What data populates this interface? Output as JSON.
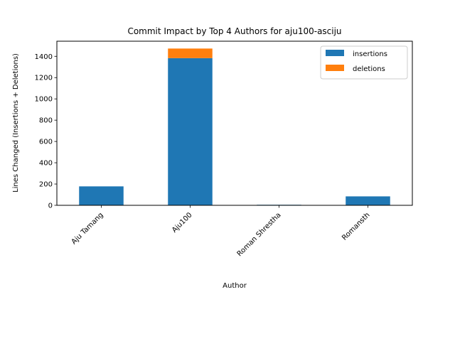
{
  "chart_data": {
    "type": "bar",
    "stacked": true,
    "title": "Commit Impact by Top 4 Authors for aju100-asciju",
    "xlabel": "Author",
    "ylabel": "Lines Changed (Insertions + Deletions)",
    "categories": [
      "Aju Tamang",
      "Aju100",
      "Roman Shrestha",
      "Romansth"
    ],
    "series": [
      {
        "name": "insertions",
        "values": [
          178,
          1383,
          5,
          84
        ],
        "color": "#1f77b4"
      },
      {
        "name": "deletions",
        "values": [
          0,
          90,
          0,
          0
        ],
        "color": "#ff7f0e"
      }
    ],
    "ylim": [
      0,
      1542
    ],
    "yticks": [
      0,
      200,
      400,
      600,
      800,
      1000,
      1200,
      1400
    ],
    "grid": false,
    "legend_position": "top-right"
  }
}
